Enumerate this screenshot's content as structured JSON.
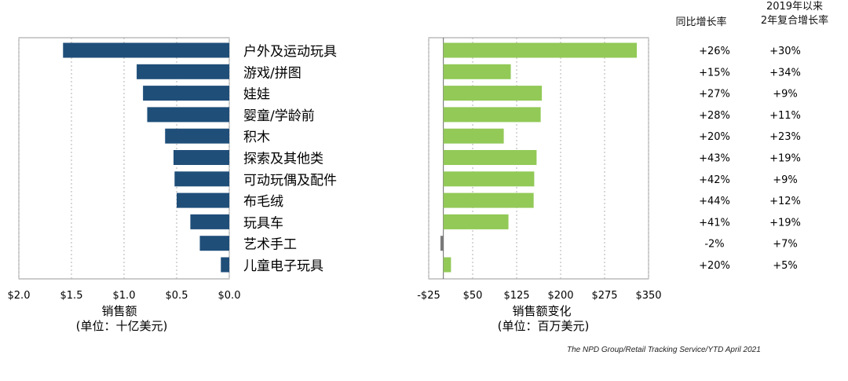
{
  "columns": {
    "yoy_header": "同比增长率",
    "cagr_header_line1": "2019年以来",
    "cagr_header_line2": "2年复合增长率"
  },
  "source": "The NPD Group/Retail Tracking Service/YTD April 2021",
  "colors": {
    "left_bars": "#1f4e79",
    "right_bars_positive": "#92c957",
    "right_bars_negative": "#7a7a7a",
    "grid": "#b0b0b0",
    "frame": "#9a9a9a"
  },
  "chart_data": [
    {
      "type": "bar",
      "orientation": "horizontal",
      "x_reversed": true,
      "categories": [
        "户外及运动玩具",
        "游戏/拼图",
        "娃娃",
        "婴童/学龄前",
        "积木",
        "探索及其他类",
        "可动玩偶及配件",
        "布毛绒",
        "玩具车",
        "艺术手工",
        "儿童电子玩具"
      ],
      "values": [
        1.58,
        0.88,
        0.82,
        0.78,
        0.61,
        0.53,
        0.52,
        0.5,
        0.37,
        0.28,
        0.08
      ],
      "xlim": [
        0,
        2.0
      ],
      "tick_labels": [
        "$2.0",
        "$1.5",
        "$1.0",
        "$0.5",
        "$0.0"
      ],
      "tick_values": [
        2.0,
        1.5,
        1.0,
        0.5,
        0.0
      ],
      "xlabel_line1": "销售额",
      "xlabel_line2": "(单位：十亿美元)",
      "grid": true
    },
    {
      "type": "bar",
      "orientation": "horizontal",
      "values": [
        330,
        115,
        168,
        166,
        103,
        159,
        155,
        154,
        111,
        -5,
        13
      ],
      "xlim": [
        -25,
        350
      ],
      "tick_labels": [
        "-$25",
        "$50",
        "$125",
        "$200",
        "$275",
        "$350"
      ],
      "tick_values": [
        -25,
        50,
        125,
        200,
        275,
        350
      ],
      "xlabel_line1": "销售额变化",
      "xlabel_line2": "(单位：百万美元)",
      "grid": true
    }
  ],
  "table": {
    "yoy": [
      "+26%",
      "+15%",
      "+27%",
      "+28%",
      "+20%",
      "+43%",
      "+42%",
      "+44%",
      "+41%",
      "-2%",
      "+20%"
    ],
    "cagr": [
      "+30%",
      "+34%",
      "+9%",
      "+11%",
      "+23%",
      "+19%",
      "+9%",
      "+12%",
      "+19%",
      "+7%",
      "+5%"
    ]
  }
}
